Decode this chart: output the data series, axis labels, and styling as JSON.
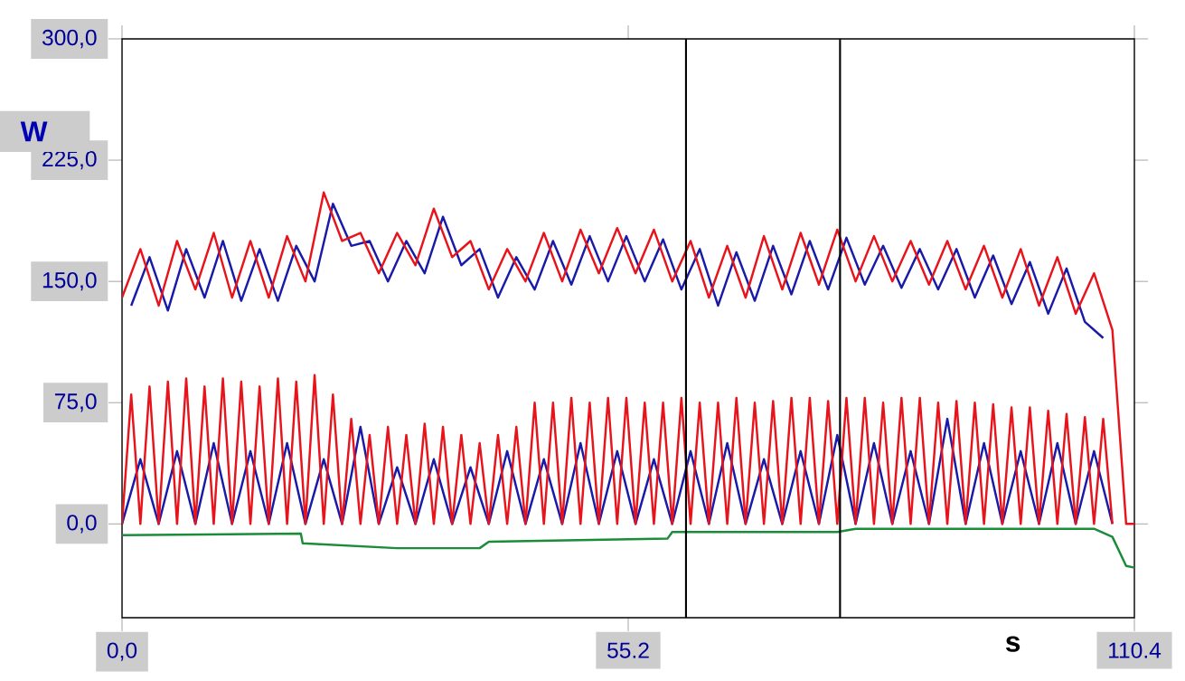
{
  "chart_data": {
    "type": "line",
    "xlabel": "s",
    "ylabel": "W",
    "xlim": [
      0,
      110.4
    ],
    "ylim": [
      -58,
      300
    ],
    "xticks": [
      {
        "value": 0,
        "label": "0,0"
      },
      {
        "value": 55.2,
        "label": "55.2"
      },
      {
        "value": 110.4,
        "label": "110.4"
      }
    ],
    "yticks": [
      {
        "value": 0,
        "label": "0,0"
      },
      {
        "value": 75,
        "label": "75,0"
      },
      {
        "value": 150,
        "label": "150,0"
      },
      {
        "value": 225,
        "label": "225,0"
      },
      {
        "value": 300,
        "label": "300,0"
      }
    ],
    "ref_lines": [
      {
        "axis": "x",
        "value": 61.5,
        "color": "#000000"
      },
      {
        "axis": "x",
        "value": 78.3,
        "color": "#000000"
      }
    ],
    "series": [
      {
        "color": "#1a1aa8",
        "x": [
          1,
          3,
          5,
          7,
          9,
          11,
          13,
          15,
          17,
          19,
          21,
          23,
          25,
          27,
          29,
          31,
          33,
          35,
          37,
          39,
          41,
          43,
          45,
          47,
          49,
          51,
          53,
          55,
          57,
          59,
          61,
          63,
          65,
          67,
          69,
          71,
          73,
          75,
          77,
          79,
          81,
          83,
          85,
          87,
          89,
          91,
          93,
          95,
          97,
          99,
          101,
          103,
          105,
          107
        ],
        "values": [
          135,
          165,
          132,
          170,
          140,
          175,
          138,
          170,
          138,
          172,
          150,
          198,
          172,
          175,
          150,
          175,
          155,
          190,
          160,
          170,
          140,
          165,
          145,
          175,
          148,
          178,
          150,
          178,
          150,
          176,
          145,
          170,
          135,
          168,
          138,
          172,
          142,
          175,
          145,
          177,
          148,
          172,
          146,
          170,
          145,
          170,
          140,
          166,
          136,
          162,
          130,
          158,
          125,
          115
        ]
      },
      {
        "color": "#e8141c",
        "x": [
          0,
          2,
          4,
          6,
          8,
          10,
          12,
          14,
          16,
          18,
          20,
          22,
          24,
          26,
          28,
          30,
          32,
          34,
          36,
          38,
          40,
          42,
          44,
          46,
          48,
          50,
          52,
          54,
          56,
          58,
          60,
          62,
          64,
          66,
          68,
          70,
          72,
          74,
          76,
          78,
          80,
          82,
          84,
          86,
          88,
          90,
          92,
          94,
          96,
          98,
          100,
          102,
          104,
          106,
          108,
          109.5,
          110.4
        ],
        "values": [
          140,
          170,
          135,
          175,
          145,
          180,
          140,
          175,
          140,
          178,
          150,
          205,
          175,
          180,
          155,
          180,
          160,
          195,
          165,
          175,
          145,
          170,
          150,
          180,
          150,
          182,
          155,
          183,
          155,
          182,
          150,
          175,
          140,
          172,
          140,
          178,
          145,
          180,
          148,
          182,
          150,
          178,
          150,
          175,
          148,
          175,
          145,
          172,
          140,
          170,
          135,
          165,
          130,
          155,
          120,
          0,
          0
        ]
      },
      {
        "color": "#1a1aa8",
        "x": [
          0,
          2,
          4,
          6,
          8,
          10,
          12,
          14,
          16,
          18,
          20,
          22,
          24,
          26,
          28,
          30,
          32,
          34,
          36,
          38,
          40,
          42,
          44,
          46,
          48,
          50,
          52,
          54,
          56,
          58,
          60,
          62,
          64,
          66,
          68,
          70,
          72,
          74,
          76,
          78,
          80,
          82,
          84,
          86,
          88,
          90,
          92,
          94,
          96,
          98,
          100,
          102,
          104,
          106,
          108
        ],
        "values": [
          0,
          40,
          0,
          45,
          0,
          50,
          0,
          45,
          0,
          50,
          0,
          40,
          0,
          60,
          0,
          35,
          0,
          40,
          0,
          35,
          0,
          45,
          0,
          40,
          0,
          50,
          0,
          45,
          0,
          40,
          0,
          45,
          0,
          50,
          0,
          40,
          0,
          45,
          0,
          55,
          0,
          50,
          0,
          45,
          0,
          65,
          0,
          50,
          0,
          45,
          0,
          50,
          0,
          45,
          0
        ]
      },
      {
        "color": "#e8141c",
        "x": [
          0,
          1,
          2,
          3,
          4,
          5,
          6,
          7,
          8,
          9,
          10,
          11,
          12,
          13,
          14,
          15,
          16,
          17,
          18,
          19,
          20,
          21,
          22,
          23,
          24,
          25,
          26,
          27,
          28,
          29,
          30,
          31,
          32,
          33,
          34,
          35,
          36,
          37,
          38,
          39,
          40,
          41,
          42,
          43,
          44,
          45,
          46,
          47,
          48,
          49,
          50,
          51,
          52,
          53,
          54,
          55,
          56,
          57,
          58,
          59,
          60,
          61,
          62,
          63,
          64,
          65,
          66,
          67,
          68,
          69,
          70,
          71,
          72,
          73,
          74,
          75,
          76,
          77,
          78,
          79,
          80,
          81,
          82,
          83,
          84,
          85,
          86,
          87,
          88,
          89,
          90,
          91,
          92,
          93,
          94,
          95,
          96,
          97,
          98,
          99,
          100,
          101,
          102,
          103,
          104,
          105,
          106,
          107,
          108
        ],
        "values": [
          0,
          80,
          0,
          85,
          0,
          88,
          0,
          90,
          0,
          85,
          0,
          90,
          0,
          88,
          0,
          85,
          0,
          90,
          0,
          88,
          0,
          92,
          0,
          80,
          0,
          65,
          0,
          55,
          0,
          60,
          0,
          55,
          0,
          62,
          0,
          60,
          0,
          55,
          0,
          50,
          0,
          55,
          0,
          60,
          0,
          75,
          0,
          75,
          0,
          78,
          0,
          75,
          0,
          78,
          0,
          78,
          0,
          75,
          0,
          75,
          0,
          78,
          0,
          75,
          0,
          75,
          0,
          78,
          0,
          75,
          0,
          76,
          0,
          78,
          0,
          78,
          0,
          76,
          0,
          78,
          0,
          78,
          0,
          75,
          0,
          78,
          0,
          78,
          0,
          75,
          0,
          76,
          0,
          75,
          0,
          74,
          0,
          72,
          0,
          72,
          0,
          70,
          0,
          68,
          0,
          66,
          0,
          65,
          0
        ]
      },
      {
        "color": "#1a8c3a",
        "x": [
          0,
          19.5,
          19.7,
          30,
          39,
          40,
          59.5,
          60,
          78,
          80,
          106,
          108,
          109.5,
          110.4
        ],
        "values": [
          -7,
          -6,
          -12,
          -15,
          -15,
          -11,
          -9,
          -5,
          -5,
          -3,
          -3,
          -8,
          -26,
          -27
        ]
      }
    ]
  }
}
